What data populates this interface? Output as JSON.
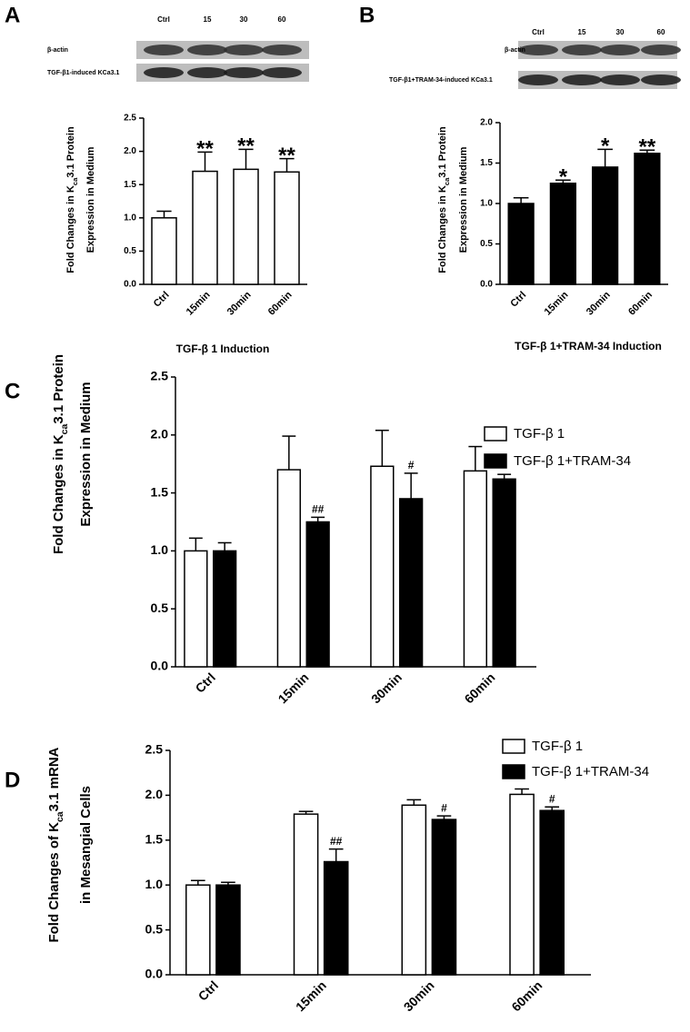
{
  "chart_data": [
    {
      "type": "bar",
      "panel": "A",
      "blot": {
        "lanes": [
          "Ctrl",
          "15",
          "30",
          "60"
        ],
        "rows": [
          "β-actin",
          "TGF-β1-induced KCa3.1"
        ]
      },
      "ylabel": [
        [
          "Fold Changes in K",
          "ca",
          "3.1 Protein"
        ],
        [
          "Expression in Medium"
        ]
      ],
      "xlabel": "TGF-β 1 Induction",
      "categories": [
        "Ctrl",
        "15min",
        "30min",
        "60min"
      ],
      "series": [
        {
          "color": "#ffffff",
          "values": [
            1.0,
            1.7,
            1.73,
            1.69
          ],
          "errors": [
            0.1,
            0.29,
            0.3,
            0.2
          ],
          "labels": [
            null,
            "**",
            "**",
            "**"
          ]
        }
      ],
      "ylim": [
        0,
        2.5
      ],
      "yticks": [
        {
          "value": 0,
          "label": "0.0"
        },
        0.5,
        {
          "value": 1,
          "label": "1.0"
        },
        1.5,
        {
          "value": 2,
          "label": "2.0"
        },
        2.5
      ]
    },
    {
      "type": "bar",
      "panel": "B",
      "blot": {
        "lanes": [
          "Ctrl",
          "15",
          "30",
          "60"
        ],
        "rows": [
          "β-actin",
          "TGF-β1+TRAM-34-induced KCa3.1"
        ]
      },
      "ylabel": [
        [
          "Fold Changes in K",
          "ca",
          "3.1 Protein"
        ],
        [
          "Expression in Medium"
        ]
      ],
      "xlabel": "TGF-β 1+TRAM-34 Induction",
      "categories": [
        "Ctrl",
        "15min",
        "30min",
        "60min"
      ],
      "series": [
        {
          "color": "#000000",
          "values": [
            1.0,
            1.25,
            1.45,
            1.62
          ],
          "errors": [
            0.07,
            0.04,
            0.22,
            0.04
          ],
          "labels": [
            null,
            "*",
            "*",
            "**"
          ]
        }
      ],
      "ylim": [
        0,
        2.0
      ],
      "yticks": [
        {
          "value": 0,
          "label": "0.0"
        },
        0.5,
        {
          "value": 1,
          "label": "1.0"
        },
        1.5,
        {
          "value": 2,
          "label": "2.0"
        }
      ]
    },
    {
      "type": "bar",
      "panel": "C",
      "ylabel": [
        [
          "Fold Changes in K",
          "ca",
          "3.1 Protein"
        ],
        [
          "Expression in Medium"
        ]
      ],
      "categories": [
        "Ctrl",
        "15min",
        "30min",
        "60min"
      ],
      "series": [
        {
          "name": "TGF-β 1",
          "color": "#ffffff",
          "values": [
            1.0,
            1.7,
            1.73,
            1.69
          ],
          "errors": [
            0.11,
            0.29,
            0.31,
            0.21
          ],
          "labels": [
            null,
            null,
            null,
            null
          ]
        },
        {
          "name": "TGF-β 1+TRAM-34",
          "color": "#000000",
          "values": [
            1.0,
            1.25,
            1.45,
            1.62
          ],
          "errors": [
            0.07,
            0.04,
            0.22,
            0.04
          ],
          "labels": [
            null,
            "##",
            "#",
            null
          ]
        }
      ],
      "ylim": [
        0,
        2.5
      ],
      "yticks": [
        {
          "value": 0,
          "label": "0.0"
        },
        0.5,
        {
          "value": 1,
          "label": "1.0"
        },
        1.5,
        {
          "value": 2,
          "label": "2.0"
        },
        2.5
      ],
      "legend": "top-right"
    },
    {
      "type": "bar",
      "panel": "D",
      "ylabel": [
        [
          "Fold Changes of K",
          "ca",
          "3.1 mRNA"
        ],
        [
          "in Mesangial Cells"
        ]
      ],
      "categories": [
        "Ctrl",
        "15min",
        "30min",
        "60min"
      ],
      "series": [
        {
          "name": "TGF-β 1",
          "color": "#ffffff",
          "values": [
            1.0,
            1.79,
            1.89,
            2.01
          ],
          "errors": [
            0.05,
            0.03,
            0.06,
            0.06
          ],
          "labels": [
            null,
            null,
            null,
            null
          ]
        },
        {
          "name": "TGF-β 1+TRAM-34",
          "color": "#000000",
          "values": [
            1.0,
            1.26,
            1.73,
            1.83
          ],
          "errors": [
            0.03,
            0.14,
            0.04,
            0.04
          ],
          "labels": [
            null,
            "##",
            "#",
            "#"
          ]
        }
      ],
      "ylim": [
        0,
        2.5
      ],
      "yticks": [
        {
          "value": 0,
          "label": "0.0"
        },
        0.5,
        {
          "value": 1,
          "label": "1.0"
        },
        1.5,
        {
          "value": 2,
          "label": "2.0"
        },
        2.5
      ],
      "legend": "top-right"
    }
  ]
}
